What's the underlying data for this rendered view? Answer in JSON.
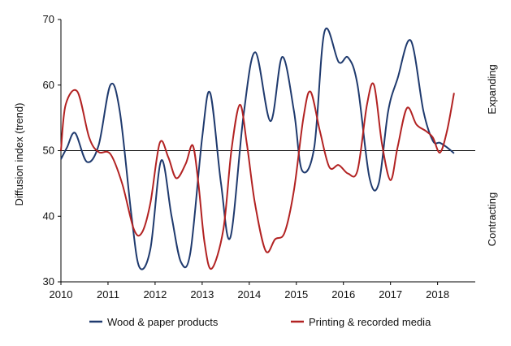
{
  "chart_data": {
    "type": "line",
    "title": "",
    "xlabel": "",
    "ylabel": "Diffusion index (trend)",
    "xlim": [
      2010,
      2018.8
    ],
    "ylim": [
      30,
      70
    ],
    "x_ticks": [
      "2010",
      "2011",
      "2012",
      "2013",
      "2014",
      "2015",
      "2016",
      "2017",
      "2018"
    ],
    "y_ticks": [
      "30",
      "40",
      "50",
      "60",
      "70"
    ],
    "reference_line": 50,
    "grid": false,
    "legend_position": "bottom",
    "annotations": {
      "above": "Expanding",
      "below": "Contracting"
    },
    "series": [
      {
        "name": "Wood & paper products",
        "color": "#1f3a6e",
        "x": [
          2010.0,
          2010.13,
          2010.3,
          2010.55,
          2010.8,
          2011.05,
          2011.25,
          2011.5,
          2011.67,
          2011.9,
          2012.13,
          2012.35,
          2012.55,
          2012.75,
          2013.0,
          2013.17,
          2013.4,
          2013.6,
          2013.88,
          2014.13,
          2014.45,
          2014.7,
          2014.95,
          2015.12,
          2015.38,
          2015.6,
          2015.9,
          2016.1,
          2016.3,
          2016.55,
          2016.75,
          2016.95,
          2017.15,
          2017.43,
          2017.7,
          2017.9,
          2018.05,
          2018.2,
          2018.35
        ],
        "y": [
          48.7,
          50.5,
          52.7,
          48.3,
          50.8,
          60.0,
          56.0,
          40.0,
          32.2,
          35.0,
          48.5,
          40.0,
          33.0,
          34.5,
          52.0,
          58.8,
          45.0,
          36.8,
          55.5,
          65.0,
          54.5,
          64.3,
          56.0,
          47.0,
          50.5,
          68.2,
          63.5,
          64.2,
          60.0,
          46.0,
          45.0,
          56.0,
          61.0,
          66.8,
          56.0,
          51.5,
          51.2,
          50.5,
          49.6
        ]
      },
      {
        "name": "Printing & recorded media",
        "color": "#b22222",
        "x": [
          2010.0,
          2010.1,
          2010.35,
          2010.6,
          2010.8,
          2011.05,
          2011.3,
          2011.55,
          2011.72,
          2011.9,
          2012.1,
          2012.28,
          2012.45,
          2012.65,
          2012.8,
          2012.92,
          2013.05,
          2013.2,
          2013.45,
          2013.62,
          2013.8,
          2013.95,
          2014.12,
          2014.35,
          2014.55,
          2014.75,
          2014.95,
          2015.15,
          2015.3,
          2015.5,
          2015.7,
          2015.9,
          2016.1,
          2016.3,
          2016.5,
          2016.65,
          2016.82,
          2017.0,
          2017.15,
          2017.35,
          2017.55,
          2017.75,
          2017.9,
          2018.05,
          2018.2,
          2018.35
        ],
        "y": [
          50.0,
          57.0,
          59.0,
          52.0,
          49.8,
          49.5,
          45.0,
          38.0,
          37.5,
          42.0,
          51.2,
          49.0,
          45.8,
          48.0,
          50.8,
          45.0,
          36.0,
          32.0,
          38.0,
          50.0,
          57.0,
          51.0,
          42.0,
          34.7,
          36.5,
          37.5,
          44.0,
          55.0,
          59.0,
          53.0,
          47.5,
          47.8,
          46.5,
          47.0,
          57.0,
          60.0,
          51.0,
          45.5,
          50.5,
          56.5,
          54.0,
          53.0,
          52.0,
          49.7,
          53.0,
          58.8
        ]
      }
    ]
  }
}
